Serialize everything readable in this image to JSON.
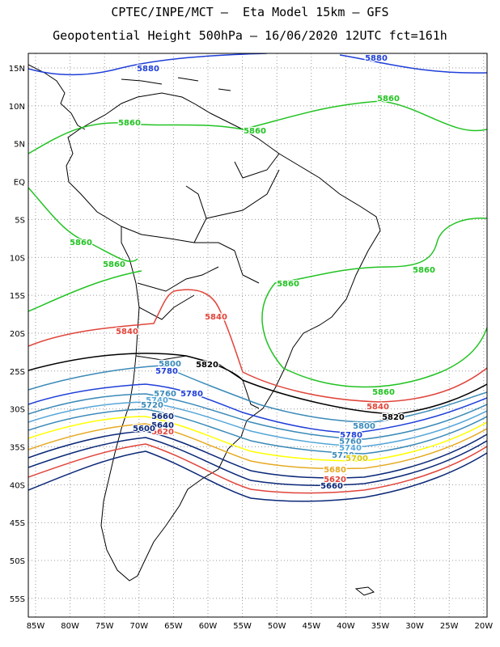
{
  "title": {
    "line1": "CPTEC/INPE/MCT –  Eta Model 15km – GFS",
    "line2": "Geopotential Height 500hPa – 16/06/2020 12UTC fct=161h"
  },
  "axes": {
    "lat_labels": [
      "15N",
      "10N",
      "5N",
      "EQ",
      "5S",
      "10S",
      "15S",
      "20S",
      "25S",
      "30S",
      "35S",
      "40S",
      "45S",
      "50S",
      "55S"
    ],
    "lon_labels": [
      "85W",
      "80W",
      "75W",
      "70W",
      "65W",
      "60W",
      "55W",
      "50W",
      "45W",
      "40W",
      "35W",
      "30W",
      "25W",
      "20W"
    ]
  },
  "contours": [
    {
      "value": "5880",
      "color": "#1f3fd8",
      "labels": [
        [
          183,
          84
        ],
        [
          465,
          71
        ]
      ]
    },
    {
      "value": "5860",
      "color": "#22c322",
      "labels": [
        [
          160,
          151
        ],
        [
          315,
          161
        ],
        [
          480,
          121
        ],
        [
          100,
          299
        ],
        [
          141,
          326
        ],
        [
          356,
          350
        ],
        [
          524,
          333
        ],
        [
          474,
          484
        ]
      ]
    },
    {
      "value": "5840",
      "color": "#e0443a",
      "labels": [
        [
          157,
          409
        ],
        [
          267,
          391
        ],
        [
          467,
          502
        ]
      ]
    },
    {
      "value": "5820",
      "color": "#000000",
      "labels": [
        [
          256,
          450
        ],
        [
          486,
          515
        ]
      ]
    },
    {
      "value": "5800",
      "color": "#3a8ab8",
      "labels": [
        [
          210,
          449
        ],
        [
          450,
          526
        ]
      ]
    },
    {
      "value": "5780",
      "color": "#1f3fd8",
      "labels": [
        [
          237,
          486
        ],
        [
          206,
          458
        ],
        [
          434,
          537
        ]
      ]
    },
    {
      "value": "5760",
      "color": "#3a8ab8",
      "labels": [
        [
          204,
          486
        ],
        [
          433,
          545
        ]
      ]
    },
    {
      "value": "5740",
      "color": "#56a6d8",
      "labels": [
        [
          194,
          494
        ],
        [
          433,
          553
        ]
      ]
    },
    {
      "value": "5720",
      "color": "#3a8ab8",
      "labels": [
        [
          188,
          500
        ],
        [
          424,
          562
        ]
      ]
    },
    {
      "value": "5700",
      "color": "#ffff00",
      "labels": [
        [
          441,
          566
        ]
      ]
    },
    {
      "value": "5680",
      "color": "#e6aa22",
      "labels": [
        [
          414,
          580
        ]
      ]
    },
    {
      "value": "5660",
      "color": "#0b2878",
      "labels": [
        [
          201,
          514
        ],
        [
          410,
          600
        ]
      ]
    },
    {
      "value": "5640",
      "color": "#0b2878",
      "labels": [
        [
          201,
          525
        ]
      ]
    },
    {
      "value": "5620",
      "color": "#e0443a",
      "labels": [
        [
          201,
          533
        ],
        [
          414,
          592
        ]
      ]
    },
    {
      "value": "5600",
      "color": "#0b2878",
      "labels": [
        [
          178,
          529
        ]
      ]
    }
  ]
}
